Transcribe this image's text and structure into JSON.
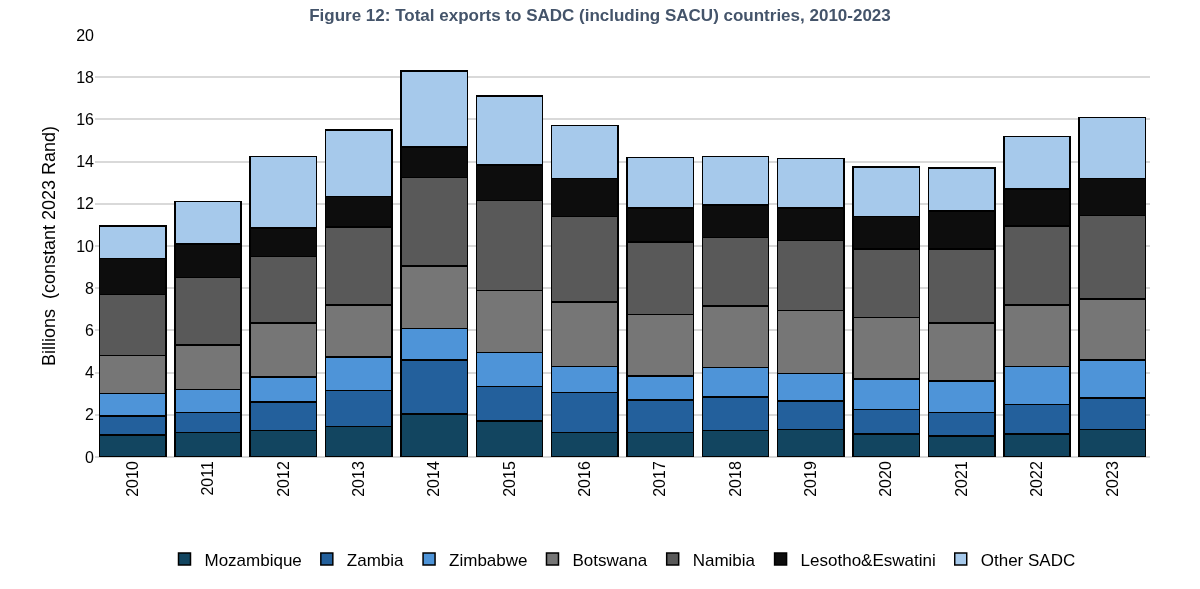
{
  "chart_data": {
    "type": "bar",
    "stacked": true,
    "title": "Figure 12: Total exports to SADC (including SACU) countries, 2010-2023",
    "ylabel": "Billions  (constant 2023 Rand)",
    "categories": [
      "2010",
      "2011",
      "2012",
      "2013",
      "2014",
      "2015",
      "2016",
      "2017",
      "2018",
      "2019",
      "2020",
      "2021",
      "2022",
      "2023"
    ],
    "ylim": [
      0,
      20
    ],
    "yticks": [
      0,
      2,
      4,
      6,
      8,
      10,
      12,
      14,
      16,
      18,
      20
    ],
    "grid": "y",
    "legend": "bottom",
    "series": [
      {
        "name": "Mozambique",
        "color": "#124560",
        "values": [
          1.05,
          1.15,
          1.25,
          1.45,
          2.05,
          1.7,
          1.15,
          1.15,
          1.25,
          1.3,
          1.1,
          1.0,
          1.1,
          1.3
        ]
      },
      {
        "name": "Zambia",
        "color": "#23609c",
        "values": [
          0.9,
          0.95,
          1.35,
          1.7,
          2.55,
          1.65,
          1.9,
          1.55,
          1.6,
          1.35,
          1.15,
          1.1,
          1.4,
          1.5
        ]
      },
      {
        "name": "Zimbabwe",
        "color": "#4e94d8",
        "values": [
          1.05,
          1.1,
          1.2,
          1.6,
          1.5,
          1.6,
          1.25,
          1.15,
          1.4,
          1.3,
          1.45,
          1.5,
          1.8,
          1.8
        ]
      },
      {
        "name": "Botswana",
        "color": "#767676",
        "values": [
          1.8,
          2.1,
          2.55,
          2.45,
          2.95,
          2.95,
          3.05,
          2.9,
          2.9,
          3.0,
          2.9,
          2.75,
          2.9,
          2.9
        ]
      },
      {
        "name": "Namibia",
        "color": "#595959",
        "values": [
          2.9,
          3.2,
          3.15,
          3.7,
          4.2,
          4.25,
          4.05,
          3.45,
          3.25,
          3.3,
          3.25,
          3.5,
          3.75,
          3.95
        ]
      },
      {
        "name": "Lesotho&Eswatini",
        "color": "#0d0d0d",
        "values": [
          1.7,
          1.6,
          1.35,
          1.45,
          1.45,
          1.7,
          1.8,
          1.6,
          1.55,
          1.55,
          1.55,
          1.8,
          1.75,
          1.75
        ]
      },
      {
        "name": "Other SADC",
        "color": "#a6c9eb",
        "values": [
          1.55,
          2.0,
          3.4,
          3.15,
          3.6,
          3.25,
          2.5,
          2.4,
          2.3,
          2.35,
          2.35,
          2.05,
          2.5,
          2.9
        ]
      }
    ]
  }
}
